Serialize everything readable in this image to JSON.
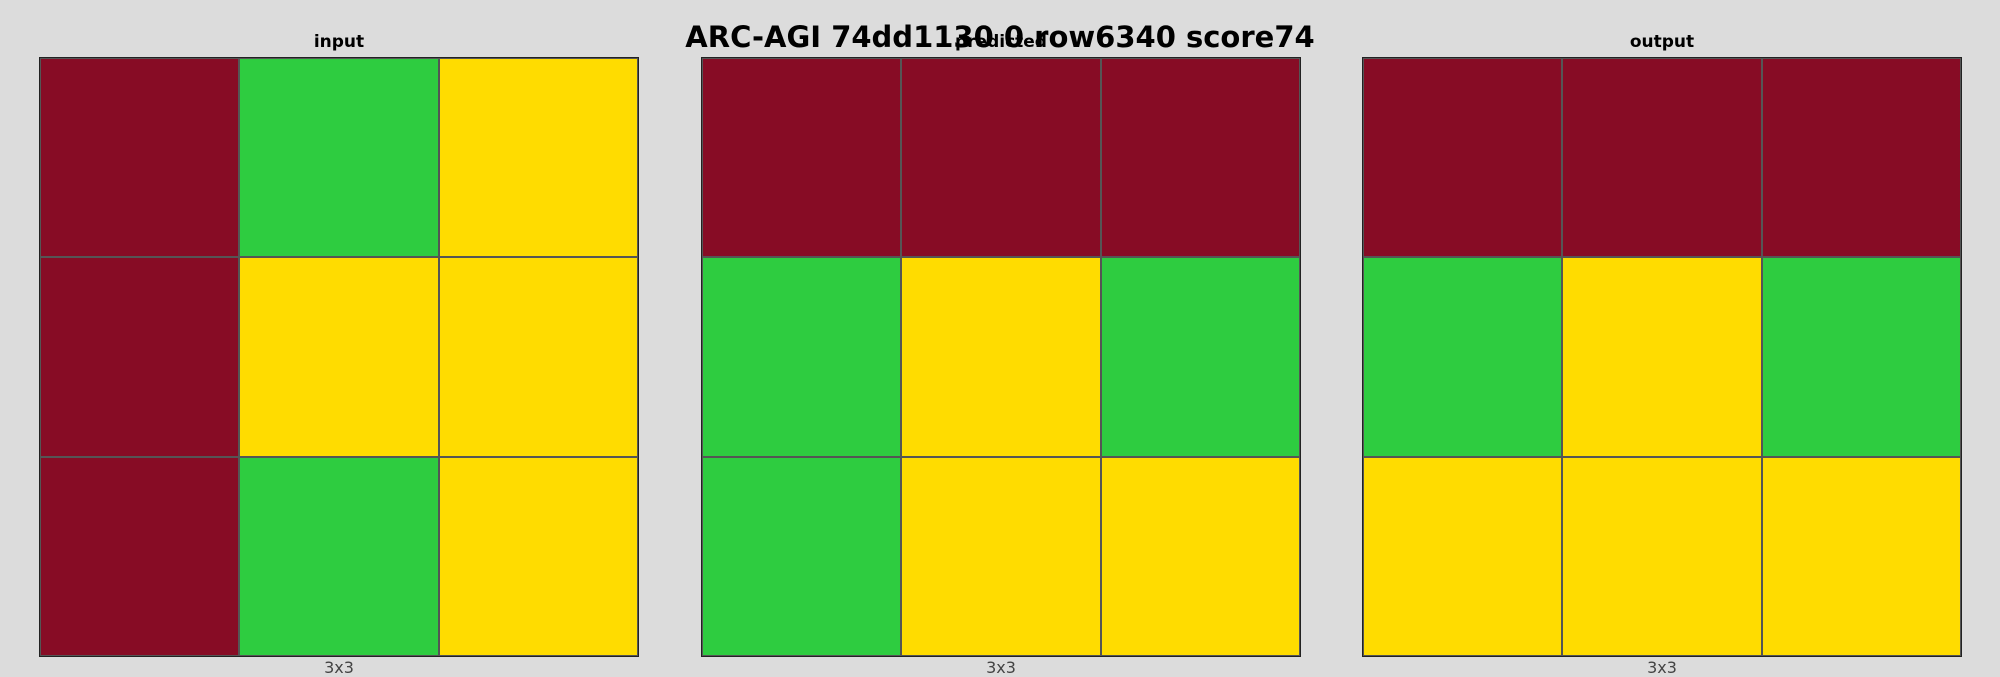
{
  "title": "ARC-AGI 74dd1130 0 row6340 score74",
  "palette": {
    "0": "#000000",
    "1": "#0074D9",
    "2": "#FF4136",
    "3": "#2ECC40",
    "4": "#FFDC00",
    "5": "#AAAAAA",
    "6": "#F012BE",
    "7": "#FF851B",
    "8": "#7FDBFF",
    "9": "#870C25"
  },
  "panels": [
    {
      "title": "input",
      "caption": "3x3",
      "grid": [
        [
          9,
          3,
          4
        ],
        [
          9,
          4,
          4
        ],
        [
          9,
          3,
          4
        ]
      ]
    },
    {
      "title": "predicted",
      "caption": "3x3",
      "grid": [
        [
          9,
          9,
          9
        ],
        [
          3,
          4,
          3
        ],
        [
          3,
          4,
          4
        ]
      ]
    },
    {
      "title": "output",
      "caption": "3x3",
      "grid": [
        [
          9,
          9,
          9
        ],
        [
          3,
          4,
          3
        ],
        [
          4,
          4,
          4
        ]
      ]
    }
  ]
}
